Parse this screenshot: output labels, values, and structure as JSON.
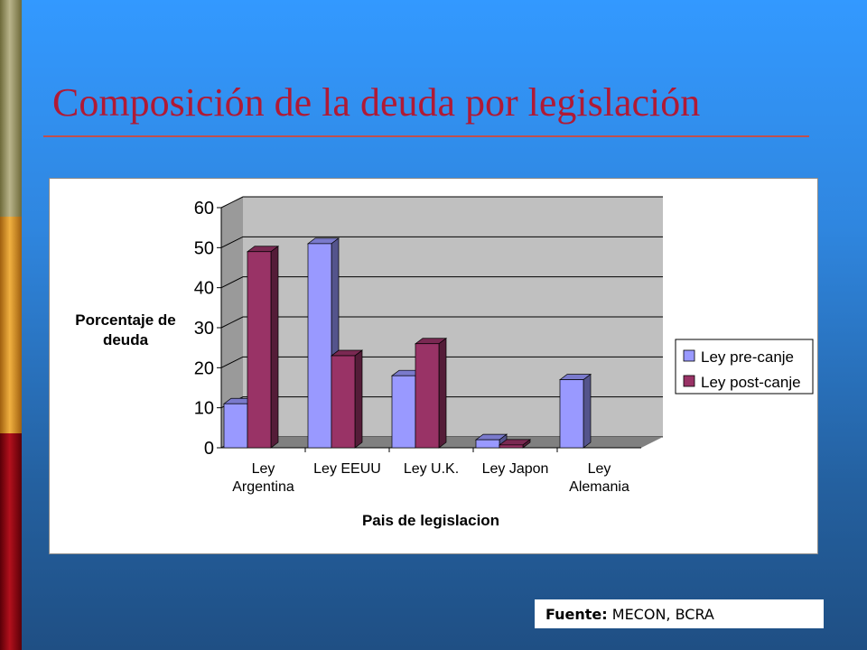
{
  "slide": {
    "title": "Composición de la deuda por legislación",
    "source_label": "Fuente:",
    "source_text": "MECON, BCRA"
  },
  "colors": {
    "title": "#b01a35",
    "pre_canje": "#9999ff",
    "post_canje": "#993366",
    "plot_wall": "#c0c0c0",
    "plot_floor": "#808080"
  },
  "chart_data": {
    "type": "bar",
    "title": "",
    "xlabel": "Pais de legislacion",
    "ylabel": "Porcentaje de deuda",
    "ylim": [
      0,
      60
    ],
    "yticks": [
      0,
      10,
      20,
      30,
      40,
      50,
      60
    ],
    "categories": [
      "Ley Argentina",
      "Ley EEUU",
      "Ley U.K.",
      "Ley Japon",
      "Ley Alemania"
    ],
    "series": [
      {
        "name": "Ley pre-canje",
        "values": [
          11,
          51,
          18,
          2,
          17
        ]
      },
      {
        "name": "Ley post-canje",
        "values": [
          49,
          23,
          26,
          0.7,
          0
        ]
      }
    ],
    "legend_position": "right",
    "grid": true
  }
}
